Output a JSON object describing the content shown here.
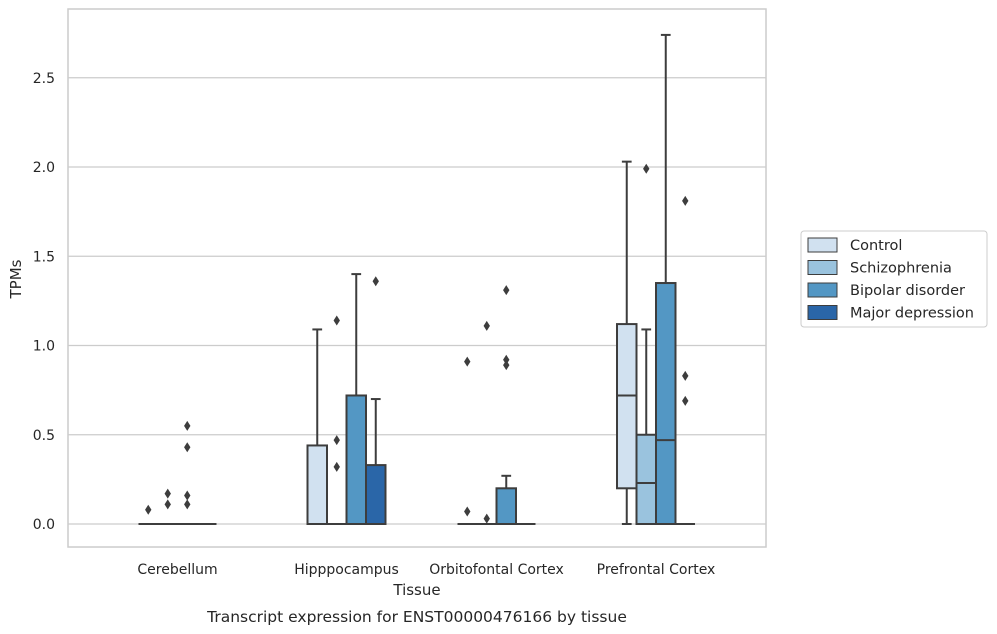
{
  "chart_data": {
    "type": "box",
    "xlabel": "Tissue",
    "ylabel": "TPMs",
    "caption": "Transcript expression for ENST00000476166 by tissue",
    "ylim": [
      -0.13,
      2.87
    ],
    "yticks": [
      0.0,
      0.5,
      1.0,
      1.5,
      2.0,
      2.5
    ],
    "ytick_labels": [
      "0.0",
      "0.5",
      "1.0",
      "1.5",
      "2.0",
      "2.5"
    ],
    "grid": "horizontal",
    "legend_position": "right",
    "categories": [
      "Cerebellum",
      "Hipppocampus",
      "Orbitofontal Cortex",
      "Prefrontal Cortex"
    ],
    "series": [
      {
        "name": "Control",
        "color": "#d1e1f0",
        "boxes": [
          {
            "whislo": 0,
            "q1": 0,
            "med": 0,
            "q3": 0,
            "whishi": 0,
            "fliers": [
              0.08
            ]
          },
          {
            "whislo": 0,
            "q1": 0,
            "med": 0,
            "q3": 0.44,
            "whishi": 1.09,
            "fliers": []
          },
          {
            "whislo": 0,
            "q1": 0,
            "med": 0,
            "q3": 0,
            "whishi": 0,
            "fliers": [
              0.91,
              0.07
            ]
          },
          {
            "whislo": 0,
            "q1": 0.2,
            "med": 0.72,
            "q3": 1.12,
            "whishi": 2.03,
            "fliers": []
          }
        ]
      },
      {
        "name": "Schizophrenia",
        "color": "#9ac3de",
        "boxes": [
          {
            "whislo": 0,
            "q1": 0,
            "med": 0,
            "q3": 0,
            "whishi": 0,
            "fliers": [
              0.17,
              0.11
            ]
          },
          {
            "whislo": 0,
            "q1": 0,
            "med": 0,
            "q3": 0,
            "whishi": 0,
            "fliers": [
              1.14,
              0.47,
              0.32
            ]
          },
          {
            "whislo": 0,
            "q1": 0,
            "med": 0,
            "q3": 0,
            "whishi": 0,
            "fliers": [
              1.11,
              0.03
            ]
          },
          {
            "whislo": 0,
            "q1": 0,
            "med": 0.23,
            "q3": 0.5,
            "whishi": 1.09,
            "fliers": [
              1.99
            ]
          }
        ]
      },
      {
        "name": "Bipolar disorder",
        "color": "#5397c4",
        "boxes": [
          {
            "whislo": 0,
            "q1": 0,
            "med": 0,
            "q3": 0,
            "whishi": 0,
            "fliers": [
              0.55,
              0.16,
              0.11,
              0.43
            ]
          },
          {
            "whislo": 0,
            "q1": 0,
            "med": 0,
            "q3": 0.72,
            "whishi": 1.4,
            "fliers": []
          },
          {
            "whislo": 0,
            "q1": 0,
            "med": 0,
            "q3": 0.2,
            "whishi": 0.27,
            "fliers": [
              1.31,
              0.92,
              0.89
            ]
          },
          {
            "whislo": 0,
            "q1": 0,
            "med": 0.47,
            "q3": 1.35,
            "whishi": 2.74,
            "fliers": []
          }
        ]
      },
      {
        "name": "Major depression",
        "color": "#2a66a8",
        "boxes": [
          {
            "whislo": 0,
            "q1": 0,
            "med": 0,
            "q3": 0,
            "whishi": 0,
            "fliers": []
          },
          {
            "whislo": 0,
            "q1": 0,
            "med": 0,
            "q3": 0.33,
            "whishi": 0.7,
            "fliers": [
              1.36
            ]
          },
          {
            "whislo": 0,
            "q1": 0,
            "med": 0,
            "q3": 0,
            "whishi": 0,
            "fliers": []
          },
          {
            "whislo": 0,
            "q1": 0,
            "med": 0,
            "q3": 0,
            "whishi": 0,
            "fliers": [
              1.81,
              0.83,
              0.69
            ]
          }
        ]
      }
    ]
  }
}
